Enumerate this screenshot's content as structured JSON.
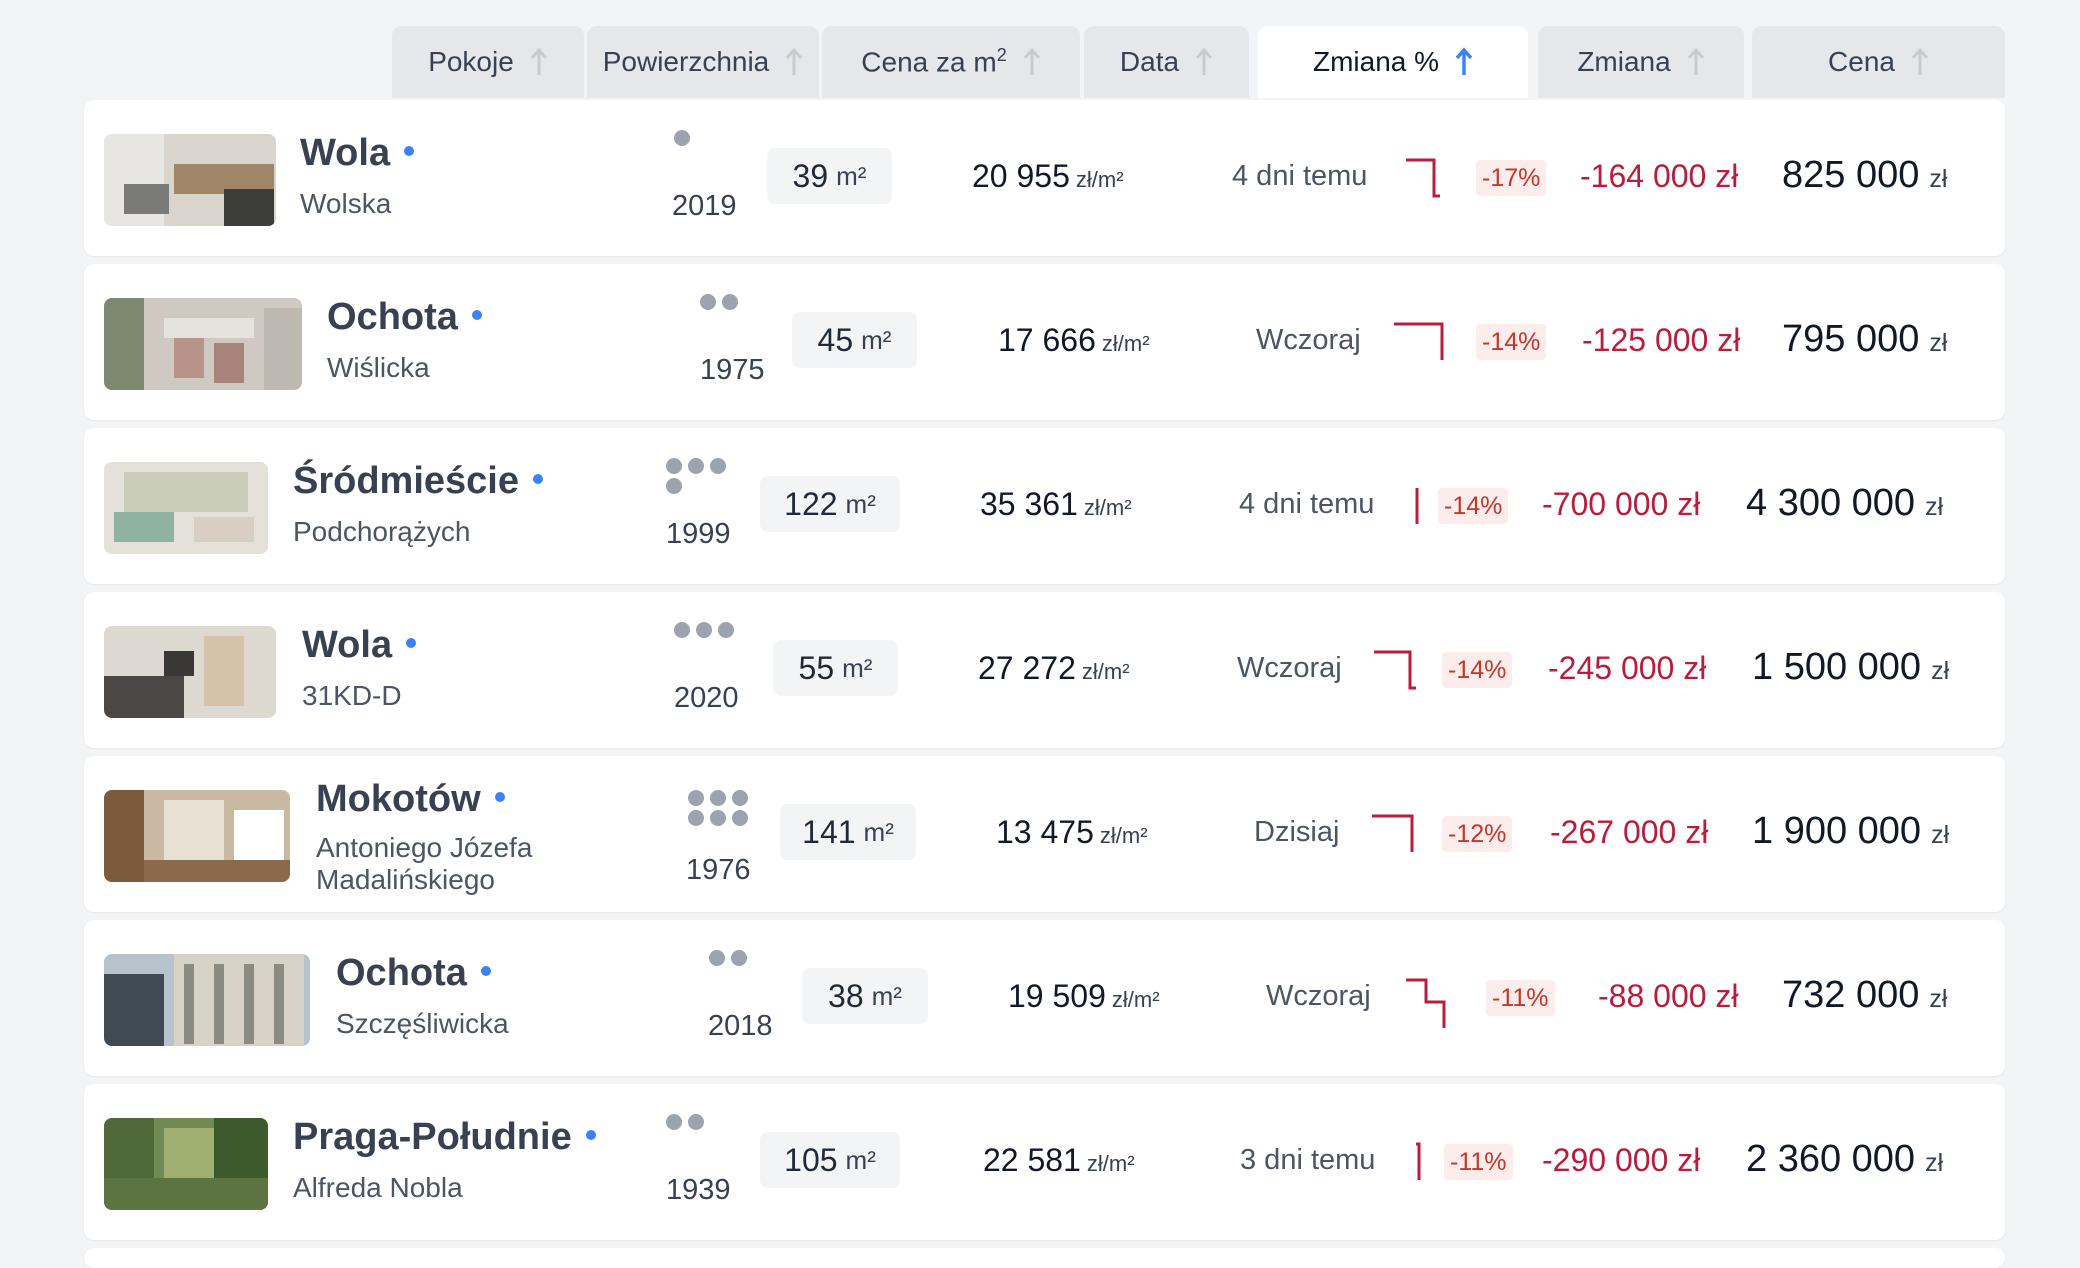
{
  "header": {
    "tabs": [
      {
        "label": "Pokoje",
        "active": false
      },
      {
        "label": "Powierzchnia",
        "active": false
      },
      {
        "label": "Cena za m",
        "sup": "2",
        "active": false
      },
      {
        "label": "Data",
        "active": false
      },
      {
        "label": "Zmiana %",
        "active": true
      },
      {
        "label": "Zmiana",
        "active": false
      },
      {
        "label": "Cena",
        "active": false
      }
    ]
  },
  "colors": {
    "accent": "#3b82f6",
    "negative": "#b91c3c",
    "negative_bg": "#fdecec"
  },
  "units": {
    "area": "m²",
    "ppm": "zł/m²",
    "currency": "zł"
  },
  "listings": [
    {
      "district": "Wola",
      "street": "Wolska",
      "rooms": 1,
      "year": "2019",
      "area": "39",
      "price_per_m2": "20 955",
      "date": "4 dni temu",
      "change_pct": "-17%",
      "change": "-164 000 zł",
      "price": "825 000",
      "sparkline": "step-down"
    },
    {
      "district": "Ochota",
      "street": "Wiślicka",
      "rooms": 2,
      "year": "1975",
      "area": "45",
      "price_per_m2": "17 666",
      "date": "Wczoraj",
      "change_pct": "-14%",
      "change": "-125 000 zł",
      "price": "795 000",
      "sparkline": "flat-drop"
    },
    {
      "district": "Śródmieście",
      "street": "Podchorążych",
      "rooms": 4,
      "year": "1999",
      "area": "122",
      "price_per_m2": "35 361",
      "date": "4 dni temu",
      "change_pct": "-14%",
      "change": "-700 000 zł",
      "price": "4 300 000",
      "sparkline": "vertical"
    },
    {
      "district": "Wola",
      "street": "31KD-D",
      "rooms": 3,
      "year": "2020",
      "area": "55",
      "price_per_m2": "27 272",
      "date": "Wczoraj",
      "change_pct": "-14%",
      "change": "-245 000 zł",
      "price": "1 500 000",
      "sparkline": "step-down"
    },
    {
      "district": "Mokotów",
      "street": "Antoniego Józefa Madalińskiego",
      "rooms": 6,
      "year": "1976",
      "area": "141",
      "price_per_m2": "13 475",
      "date": "Dzisiaj",
      "change_pct": "-12%",
      "change": "-267 000 zł",
      "price": "1 900 000",
      "sparkline": "step-down"
    },
    {
      "district": "Ochota",
      "street": "Szczęśliwicka",
      "rooms": 2,
      "year": "2018",
      "area": "38",
      "price_per_m2": "19 509",
      "date": "Wczoraj",
      "change_pct": "-11%",
      "change": "-88 000 zł",
      "price": "732 000",
      "sparkline": "double-step"
    },
    {
      "district": "Praga-Południe",
      "street": "Alfreda Nobla",
      "rooms": 2,
      "year": "1939",
      "area": "105",
      "price_per_m2": "22 581",
      "date": "3 dni temu",
      "change_pct": "-11%",
      "change": "-290 000 zł",
      "price": "2 360 000",
      "sparkline": "vertical"
    }
  ]
}
